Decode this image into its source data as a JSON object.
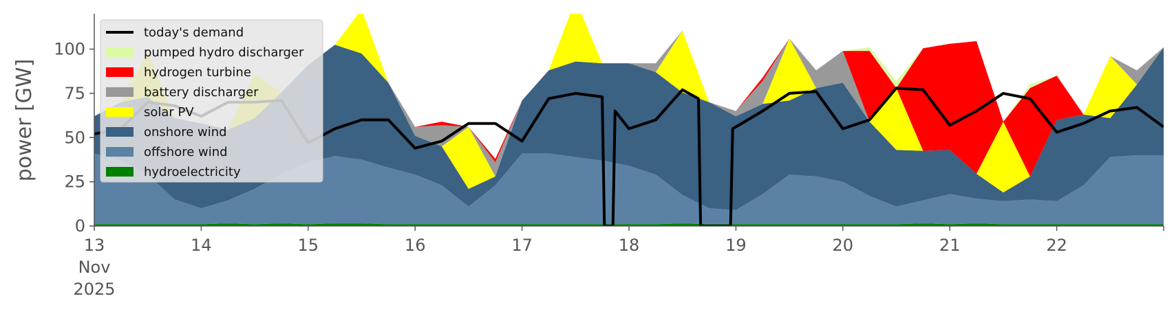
{
  "chart_data": {
    "type": "area",
    "ylabel": "power [GW]",
    "ylim": [
      0,
      120
    ],
    "yticks": [
      "0",
      "25",
      "50",
      "75",
      "100"
    ],
    "xlim": [
      13,
      23
    ],
    "xticks": [
      {
        "day": 13,
        "label": "13",
        "sub": [
          "Nov",
          "2025"
        ]
      },
      {
        "day": 14,
        "label": "14"
      },
      {
        "day": 15,
        "label": "15"
      },
      {
        "day": 16,
        "label": "16"
      },
      {
        "day": 17,
        "label": "17"
      },
      {
        "day": 18,
        "label": "18"
      },
      {
        "day": 19,
        "label": "19"
      },
      {
        "day": 20,
        "label": "20"
      },
      {
        "day": 21,
        "label": "21"
      },
      {
        "day": 22,
        "label": "22"
      }
    ],
    "x": [
      13.0,
      13.25,
      13.5,
      13.75,
      14.0,
      14.25,
      14.5,
      14.75,
      15.0,
      15.25,
      15.5,
      15.75,
      16.0,
      16.25,
      16.5,
      16.75,
      17.0,
      17.25,
      17.5,
      17.75,
      18.0,
      18.25,
      18.5,
      18.75,
      19.0,
      19.25,
      19.5,
      19.75,
      20.0,
      20.25,
      20.5,
      20.75,
      21.0,
      21.25,
      21.5,
      21.75,
      22.0,
      22.25,
      22.5,
      22.75,
      23.0
    ],
    "series": [
      {
        "name": "hydroelectricity",
        "color": "#008000",
        "values": [
          1,
          1,
          1,
          1,
          1,
          1.5,
          1,
          1.5,
          1,
          1.5,
          1.5,
          1,
          1,
          1,
          1,
          1,
          1,
          1,
          1,
          1,
          1,
          1,
          1.5,
          1,
          1,
          1,
          1,
          1,
          1,
          1,
          1,
          1.5,
          1,
          1.5,
          1,
          1,
          1,
          1,
          1,
          1,
          1
        ]
      },
      {
        "name": "offshore wind",
        "color": "#5b82a4",
        "values": [
          40,
          36,
          28,
          14,
          9,
          13,
          20,
          28,
          35,
          38,
          36,
          32,
          28,
          22,
          10,
          22,
          40,
          40,
          38,
          36,
          33,
          28,
          16,
          9,
          8,
          17,
          28,
          27,
          24,
          16,
          10,
          13,
          17,
          14,
          13,
          14,
          13,
          22,
          38,
          39,
          39
        ]
      },
      {
        "name": "onshore wind",
        "color": "#3b6183",
        "values": [
          21,
          33,
          44,
          46,
          48,
          40,
          40,
          46,
          55,
          63,
          60,
          48,
          22,
          22,
          10,
          5,
          30,
          47,
          54,
          55,
          58,
          58,
          58,
          60,
          53,
          51,
          42,
          50,
          56,
          42,
          32,
          28,
          25,
          14,
          5,
          13,
          46,
          40,
          22,
          40,
          61
        ]
      },
      {
        "name": "solar PV",
        "color": "#ffff00",
        "values": [
          0,
          0,
          25,
          0,
          0,
          0,
          25,
          0,
          0,
          0,
          25,
          0,
          0,
          0,
          35,
          0,
          0,
          0,
          35,
          0,
          0,
          0,
          35,
          0,
          0,
          0,
          35,
          0,
          0,
          0,
          35,
          0,
          0,
          0,
          40,
          0,
          0,
          0,
          35,
          0,
          0
        ]
      },
      {
        "name": "battery discharger",
        "color": "#999999",
        "values": [
          0,
          0,
          0,
          0,
          0,
          0,
          0,
          0,
          0,
          0,
          0,
          0,
          5,
          12,
          0,
          8,
          0,
          0,
          0,
          0,
          0,
          5,
          0,
          0,
          3,
          13,
          0,
          10,
          18,
          0,
          0,
          0,
          0,
          0,
          0,
          0,
          0,
          0,
          0,
          8,
          0
        ]
      },
      {
        "name": "hydrogen turbine",
        "color": "#ff0000",
        "values": [
          0,
          0,
          0,
          0,
          0,
          0,
          0,
          0,
          0,
          0,
          0,
          0,
          0,
          2,
          0,
          2,
          0,
          0,
          0,
          0,
          0,
          0,
          0,
          0,
          0,
          2,
          0,
          0,
          0,
          40,
          0,
          58,
          60,
          75,
          0,
          50,
          25,
          0,
          0,
          0,
          0
        ]
      },
      {
        "name": "pumped hydro discharger",
        "color": "#dcfaa5",
        "values": [
          0,
          0,
          0,
          0,
          0,
          0,
          0,
          0,
          0,
          0,
          0,
          0,
          0,
          0,
          0,
          0,
          0,
          0,
          0,
          0,
          0,
          0,
          0,
          0,
          0,
          0,
          0,
          0,
          0,
          2,
          4,
          0,
          0,
          0,
          0,
          2,
          0,
          0,
          0,
          0,
          0
        ]
      }
    ],
    "demand": {
      "name": "today's demand",
      "color": "#000000",
      "points": [
        [
          13.0,
          52
        ],
        [
          13.25,
          55
        ],
        [
          13.5,
          70
        ],
        [
          13.75,
          68
        ],
        [
          14.0,
          62
        ],
        [
          14.25,
          70
        ],
        [
          14.5,
          70
        ],
        [
          14.75,
          71
        ],
        [
          15.0,
          47
        ],
        [
          15.25,
          55
        ],
        [
          15.5,
          60
        ],
        [
          15.75,
          60
        ],
        [
          16.0,
          44
        ],
        [
          16.25,
          48
        ],
        [
          16.5,
          58
        ],
        [
          16.75,
          58
        ],
        [
          17.0,
          48
        ],
        [
          17.25,
          72
        ],
        [
          17.5,
          75
        ],
        [
          17.75,
          73
        ],
        [
          17.77,
          0
        ],
        [
          17.85,
          0
        ],
        [
          17.87,
          65
        ],
        [
          18.0,
          55
        ],
        [
          18.25,
          60
        ],
        [
          18.5,
          77
        ],
        [
          18.65,
          72
        ],
        [
          18.67,
          0
        ],
        [
          18.95,
          0
        ],
        [
          18.97,
          55
        ],
        [
          19.25,
          65
        ],
        [
          19.5,
          75
        ],
        [
          19.75,
          76
        ],
        [
          20.0,
          55
        ],
        [
          20.25,
          60
        ],
        [
          20.5,
          78
        ],
        [
          20.75,
          77
        ],
        [
          21.0,
          57
        ],
        [
          21.25,
          65
        ],
        [
          21.5,
          75
        ],
        [
          21.75,
          72
        ],
        [
          22.0,
          53
        ],
        [
          22.25,
          58
        ],
        [
          22.5,
          65
        ],
        [
          22.75,
          67
        ],
        [
          23.0,
          56
        ]
      ]
    },
    "legend": {
      "position": "top-left",
      "entries": [
        {
          "label": "today's demand",
          "color": "#000000",
          "kind": "line"
        },
        {
          "label": "pumped hydro discharger",
          "color": "#dcfaa5",
          "kind": "patch"
        },
        {
          "label": "hydrogen turbine",
          "color": "#ff0000",
          "kind": "patch"
        },
        {
          "label": "battery discharger",
          "color": "#999999",
          "kind": "patch"
        },
        {
          "label": "solar PV",
          "color": "#ffff00",
          "kind": "patch"
        },
        {
          "label": "onshore wind",
          "color": "#3b6183",
          "kind": "patch"
        },
        {
          "label": "offshore wind",
          "color": "#5b82a4",
          "kind": "patch"
        },
        {
          "label": "hydroelectricity",
          "color": "#008000",
          "kind": "patch"
        }
      ]
    },
    "grid": false
  }
}
